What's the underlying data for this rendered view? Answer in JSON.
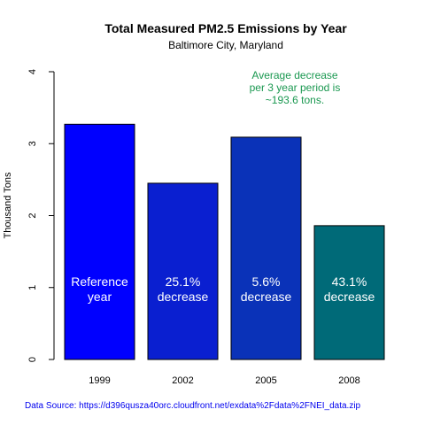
{
  "chart_data": {
    "type": "bar",
    "title": "Total Measured PM2.5 Emissions by Year",
    "subtitle": "Baltimore City, Maryland",
    "ylabel": "Thousand Tons",
    "xlabel": "",
    "ylim": [
      0,
      4
    ],
    "yticks": [
      "0",
      "1",
      "2",
      "3",
      "4"
    ],
    "categories": [
      "1999",
      "2002",
      "2005",
      "2008"
    ],
    "values": [
      3.27,
      2.45,
      3.09,
      1.86
    ],
    "bar_colors": [
      "#0000ff",
      "#0a1fd0",
      "#0a32b8",
      "#006a78"
    ],
    "bar_labels": [
      [
        "Reference",
        "year"
      ],
      [
        "25.1%",
        "decrease"
      ],
      [
        "5.6%",
        "decrease"
      ],
      [
        "43.1%",
        "decrease"
      ]
    ],
    "annotation": [
      "Average decrease",
      "per 3 year period is",
      "~193.6 tons."
    ],
    "annotation_color": "#1a9850",
    "grid": false,
    "source": "Data Source: https://d396qusza40orc.cloudfront.net/exdata%2Fdata%2FNEI_data.zip"
  }
}
